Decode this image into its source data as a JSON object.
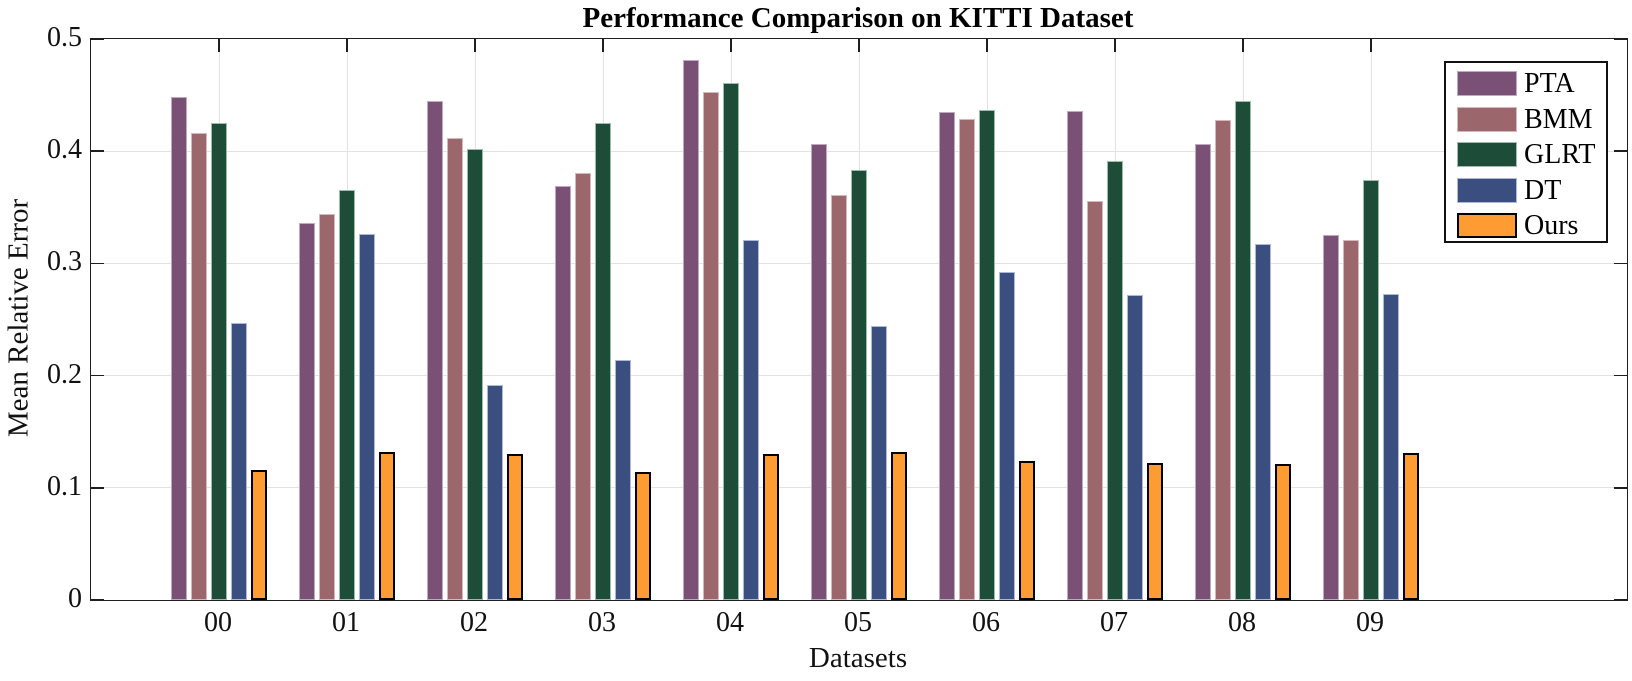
{
  "chart_data": {
    "type": "bar",
    "title": "Performance Comparison on KITTI Dataset",
    "xlabel": "Datasets",
    "ylabel": "Mean Relative Error",
    "categories": [
      "00",
      "01",
      "02",
      "03",
      "04",
      "05",
      "06",
      "07",
      "08",
      "09"
    ],
    "series": [
      {
        "name": "PTA",
        "color": "#7A5076",
        "edge_color": "#C0AABE",
        "edge_width": 1,
        "values": [
          0.448,
          0.336,
          0.445,
          0.369,
          0.481,
          0.406,
          0.435,
          0.436,
          0.406,
          0.325
        ]
      },
      {
        "name": "BMM",
        "color": "#9B676D",
        "edge_color": "#D4B8BB",
        "edge_width": 1,
        "values": [
          0.416,
          0.344,
          0.412,
          0.381,
          0.453,
          0.361,
          0.429,
          0.356,
          0.428,
          0.321
        ]
      },
      {
        "name": "GLRT",
        "color": "#1D4C38",
        "edge_color": "#9DBCAA",
        "edge_width": 1,
        "values": [
          0.425,
          0.365,
          0.402,
          0.425,
          0.461,
          0.383,
          0.437,
          0.391,
          0.445,
          0.374
        ]
      },
      {
        "name": "DT",
        "color": "#3A4F80",
        "edge_color": "#AEB9D6",
        "edge_width": 1,
        "values": [
          0.247,
          0.326,
          0.192,
          0.214,
          0.321,
          0.244,
          0.292,
          0.272,
          0.317,
          0.273
        ]
      },
      {
        "name": "Ours",
        "color": "#FE9C33",
        "edge_color": "#000000",
        "edge_width": 2,
        "values": [
          0.116,
          0.132,
          0.13,
          0.114,
          0.13,
          0.132,
          0.124,
          0.122,
          0.121,
          0.131
        ]
      }
    ],
    "ylim": [
      0,
      0.5
    ],
    "yticks": [
      0,
      0.1,
      0.2,
      0.3,
      0.4,
      0.5
    ],
    "ytick_labels": [
      "0",
      "0.1",
      "0.2",
      "0.3",
      "0.4",
      "0.5"
    ],
    "grid": true,
    "grid_color": "#e2e2e2",
    "axis_color": "#1f1f1f",
    "legend_position": "top-right"
  }
}
